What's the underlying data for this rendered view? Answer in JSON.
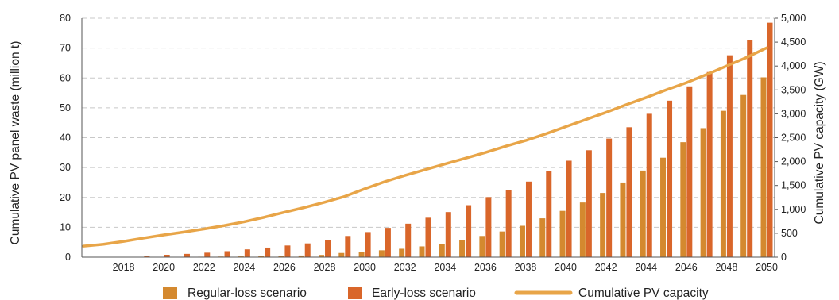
{
  "chart_data": {
    "type": "bar",
    "title": "",
    "x": [
      2016,
      2017,
      2018,
      2019,
      2020,
      2021,
      2022,
      2023,
      2024,
      2025,
      2026,
      2027,
      2028,
      2029,
      2030,
      2031,
      2032,
      2033,
      2034,
      2035,
      2036,
      2037,
      2038,
      2039,
      2040,
      2041,
      2042,
      2043,
      2044,
      2045,
      2046,
      2047,
      2048,
      2049,
      2050
    ],
    "x_tick_labels": [
      "2018",
      "2020",
      "2022",
      "2024",
      "2026",
      "2028",
      "2030",
      "2032",
      "2034",
      "2036",
      "2038",
      "2040",
      "2042",
      "2044",
      "2046",
      "2048",
      "2050"
    ],
    "xlabel": "",
    "ylabel": "Cumulative PV panel waste (million t)",
    "ylim": [
      0,
      80
    ],
    "y_ticks": [
      0,
      10,
      20,
      30,
      40,
      50,
      60,
      70,
      80
    ],
    "ylabel_right": "Cumulative PV capacity (GW)",
    "ylim_right": [
      0,
      5000
    ],
    "y_ticks_right": [
      "0",
      "500",
      "1,000",
      "1,500",
      "2,000",
      "2,500",
      "3,000",
      "3,500",
      "4,000",
      "4,500",
      "5,000"
    ],
    "grid": "horizontal dashed",
    "legend_position": "bottom",
    "series": [
      {
        "name": "Regular-loss scenario",
        "kind": "bar",
        "axis": "left",
        "color": "#D4892F",
        "values": [
          0,
          0,
          0,
          0.05,
          0.1,
          0.1,
          0.15,
          0.2,
          0.25,
          0.3,
          0.4,
          0.55,
          0.75,
          1.4,
          1.8,
          2.3,
          2.8,
          3.6,
          4.5,
          5.7,
          7.1,
          8.6,
          10.5,
          13,
          15.5,
          18.3,
          21.5,
          25,
          29,
          33.3,
          38.5,
          43.2,
          49,
          54.3,
          60.2
        ]
      },
      {
        "name": "Early-loss scenario",
        "kind": "bar",
        "axis": "left",
        "color": "#D9662A",
        "values": [
          0,
          0,
          0,
          0.5,
          0.8,
          1.1,
          1.5,
          2,
          2.6,
          3.2,
          3.9,
          4.6,
          5.7,
          7.1,
          8.4,
          9.8,
          11.2,
          13.2,
          15.1,
          17.4,
          20.1,
          22.4,
          25.3,
          28.8,
          32.3,
          35.8,
          39.7,
          43.5,
          48,
          52.4,
          57.2,
          62,
          67.6,
          72.6,
          78.5
        ]
      },
      {
        "name": "Cumulative PV capacity",
        "kind": "line",
        "axis": "right",
        "color": "#E8A548",
        "values": [
          230,
          270,
          330,
          400,
          465,
          525,
          590,
          660,
          740,
          835,
          940,
          1040,
          1150,
          1270,
          1430,
          1580,
          1710,
          1830,
          1950,
          2070,
          2190,
          2320,
          2440,
          2580,
          2730,
          2880,
          3030,
          3190,
          3340,
          3500,
          3650,
          3820,
          4000,
          4180,
          4380
        ]
      }
    ]
  }
}
